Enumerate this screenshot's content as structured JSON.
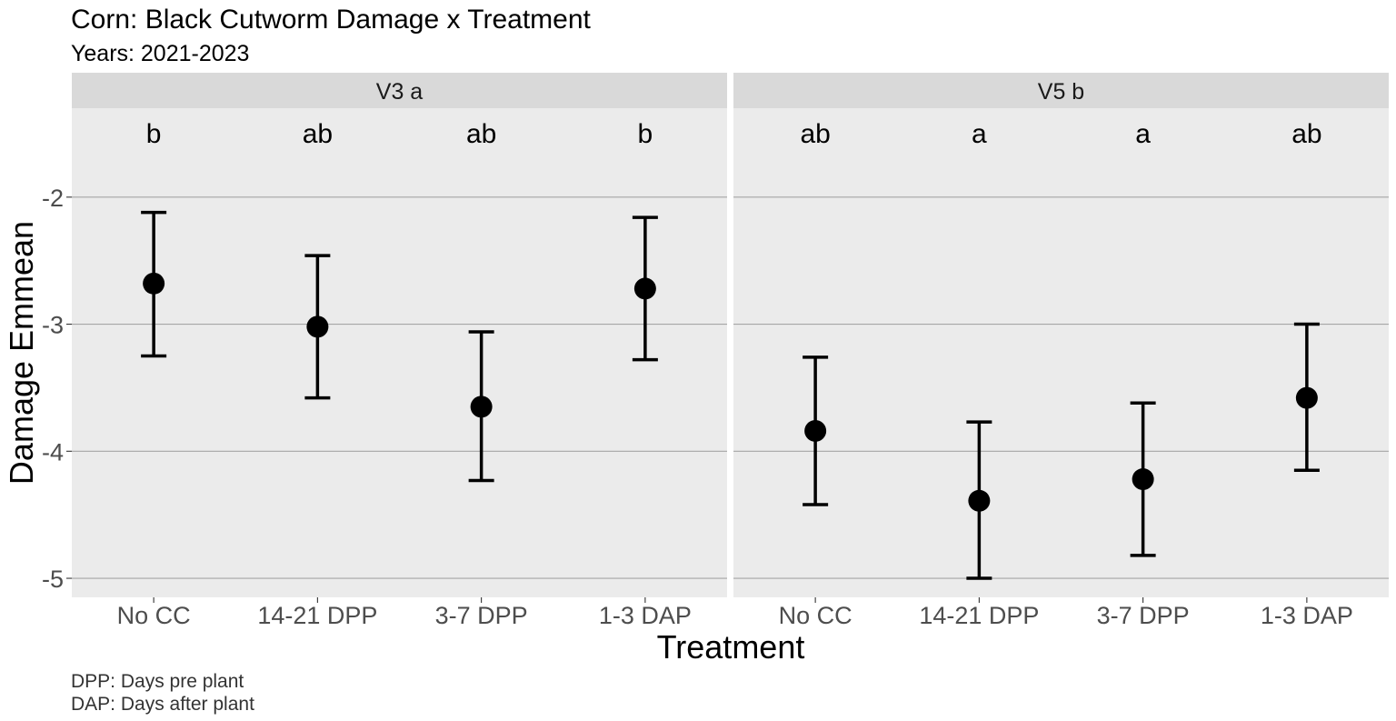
{
  "chart_data": {
    "type": "errorbar",
    "title": "Corn: Black Cutworm Damage x Treatment",
    "subtitle": "Years: 2021-2023",
    "xlabel": "Treatment",
    "ylabel": "Damage Emmean",
    "caption": [
      "DPP: Days pre plant",
      "DAP: Days after plant"
    ],
    "categories": [
      "No CC",
      "14-21 DPP",
      "3-7 DPP",
      "1-3 DAP"
    ],
    "ylim": [
      -5.15,
      -1.3
    ],
    "yticks": [
      -2,
      -3,
      -4,
      -5
    ],
    "ytick_labels": [
      "-2",
      "-3",
      "-4",
      "-5"
    ],
    "grid": true,
    "panels": [
      {
        "label": "V3",
        "group_letter": "a",
        "means": [
          -2.68,
          -3.02,
          -3.65,
          -2.72
        ],
        "lower": [
          -3.25,
          -3.58,
          -4.23,
          -3.28
        ],
        "upper": [
          -2.12,
          -2.46,
          -3.06,
          -2.16
        ],
        "letters": [
          "b",
          "ab",
          "ab",
          "b"
        ]
      },
      {
        "label": "V5",
        "group_letter": "b",
        "means": [
          -3.84,
          -4.39,
          -4.22,
          -3.58
        ],
        "lower": [
          -4.42,
          -5.0,
          -4.82,
          -4.15
        ],
        "upper": [
          -3.26,
          -3.77,
          -3.62,
          -3.0
        ],
        "letters": [
          "ab",
          "a",
          "a",
          "ab"
        ]
      }
    ]
  }
}
